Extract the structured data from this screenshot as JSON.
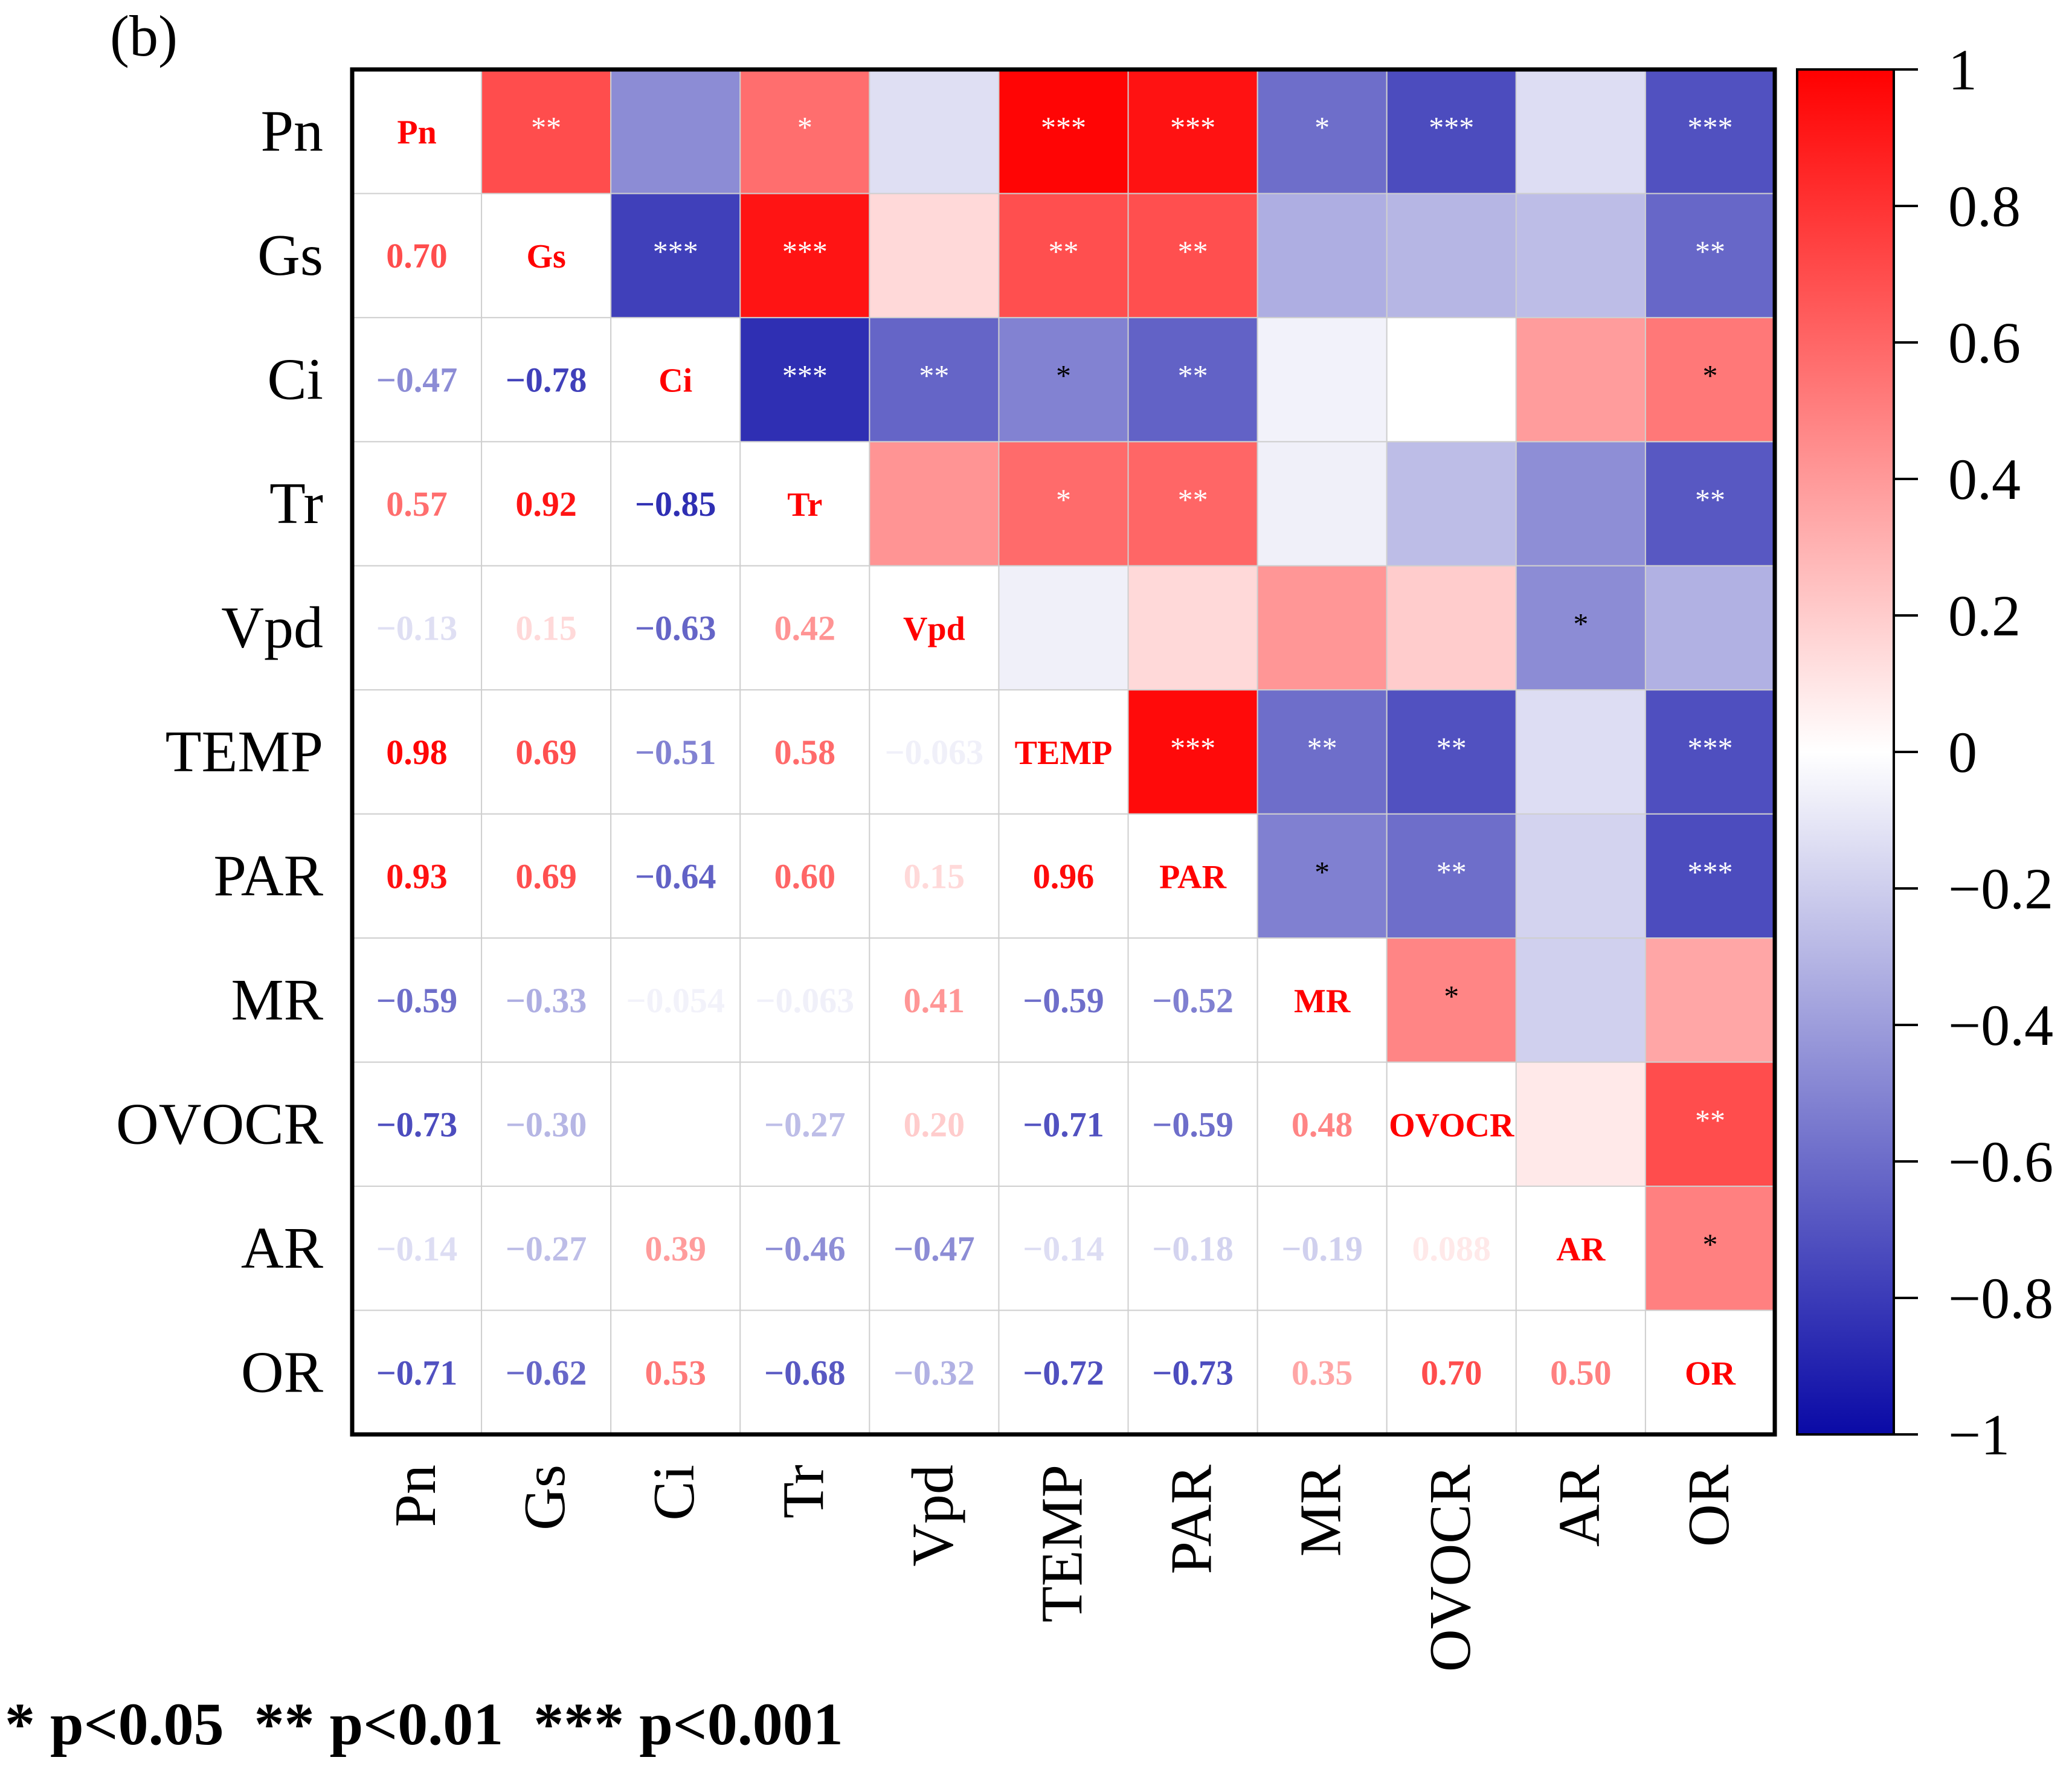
{
  "chart_data": {
    "type": "heatmap",
    "panel_label": "(b)",
    "variables": [
      "Pn",
      "Gs",
      "Ci",
      "Tr",
      "Vpd",
      "TEMP",
      "PAR",
      "MR",
      "OVOCR",
      "AR",
      "OR"
    ],
    "lower_triangle_labels": [
      [
        null,
        null,
        null,
        null,
        null,
        null,
        null,
        null,
        null,
        null,
        null
      ],
      [
        "0.70",
        null,
        null,
        null,
        null,
        null,
        null,
        null,
        null,
        null,
        null
      ],
      [
        "−0.47",
        "−0.78",
        null,
        null,
        null,
        null,
        null,
        null,
        null,
        null,
        null
      ],
      [
        "0.57",
        "0.92",
        "−0.85",
        null,
        null,
        null,
        null,
        null,
        null,
        null,
        null
      ],
      [
        "−0.13",
        "0.15",
        "−0.63",
        "0.42",
        null,
        null,
        null,
        null,
        null,
        null,
        null
      ],
      [
        "0.98",
        "0.69",
        "−0.51",
        "0.58",
        "−0.063",
        null,
        null,
        null,
        null,
        null,
        null
      ],
      [
        "0.93",
        "0.69",
        "−0.64",
        "0.60",
        "0.15",
        "0.96",
        null,
        null,
        null,
        null,
        null
      ],
      [
        "−0.59",
        "−0.33",
        "−0.054",
        "−0.063",
        "0.41",
        "−0.59",
        "−0.52",
        null,
        null,
        null,
        null
      ],
      [
        "−0.73",
        "−0.30",
        "",
        "−0.27",
        "0.20",
        "−0.71",
        "−0.59",
        "0.48",
        null,
        null,
        null
      ],
      [
        "−0.14",
        "−0.27",
        "0.39",
        "−0.46",
        "−0.47",
        "−0.14",
        "−0.18",
        "−0.19",
        "0.088",
        null,
        null
      ],
      [
        "−0.71",
        "−0.62",
        "0.53",
        "−0.68",
        "−0.32",
        "−0.72",
        "−0.73",
        "0.35",
        "0.70",
        "0.50",
        null
      ]
    ],
    "lower_triangle_values": [
      [
        null,
        null,
        null,
        null,
        null,
        null,
        null,
        null,
        null,
        null,
        null
      ],
      [
        0.7,
        null,
        null,
        null,
        null,
        null,
        null,
        null,
        null,
        null,
        null
      ],
      [
        -0.47,
        -0.78,
        null,
        null,
        null,
        null,
        null,
        null,
        null,
        null,
        null
      ],
      [
        0.57,
        0.92,
        -0.85,
        null,
        null,
        null,
        null,
        null,
        null,
        null,
        null
      ],
      [
        -0.13,
        0.15,
        -0.63,
        0.42,
        null,
        null,
        null,
        null,
        null,
        null,
        null
      ],
      [
        0.98,
        0.69,
        -0.51,
        0.58,
        -0.063,
        null,
        null,
        null,
        null,
        null,
        null
      ],
      [
        0.93,
        0.69,
        -0.64,
        0.6,
        0.15,
        0.96,
        null,
        null,
        null,
        null,
        null
      ],
      [
        -0.59,
        -0.33,
        -0.054,
        -0.063,
        0.41,
        -0.59,
        -0.52,
        null,
        null,
        null,
        null
      ],
      [
        -0.73,
        -0.3,
        0.0,
        -0.27,
        0.2,
        -0.71,
        -0.59,
        0.48,
        null,
        null,
        null
      ],
      [
        -0.14,
        -0.27,
        0.39,
        -0.46,
        -0.47,
        -0.14,
        -0.18,
        -0.19,
        0.088,
        null,
        null
      ],
      [
        -0.71,
        -0.62,
        0.53,
        -0.68,
        -0.32,
        -0.72,
        -0.73,
        0.35,
        0.7,
        0.5,
        null
      ]
    ],
    "significance_upper": [
      [
        null,
        "**",
        "",
        "*",
        "",
        "***",
        "***",
        "*",
        "***",
        "",
        "***"
      ],
      [
        null,
        null,
        "***",
        "***",
        "",
        "**",
        "**",
        "",
        "",
        "",
        "**"
      ],
      [
        null,
        null,
        null,
        "***",
        "**",
        "*",
        "**",
        "",
        "",
        "",
        "*"
      ],
      [
        null,
        null,
        null,
        null,
        "",
        "*",
        "**",
        "",
        "",
        "",
        "**"
      ],
      [
        null,
        null,
        null,
        null,
        null,
        "",
        "",
        "",
        "",
        "*",
        ""
      ],
      [
        null,
        null,
        null,
        null,
        null,
        null,
        "***",
        "**",
        "**",
        "",
        "***"
      ],
      [
        null,
        null,
        null,
        null,
        null,
        null,
        null,
        "*",
        "**",
        "",
        "***"
      ],
      [
        null,
        null,
        null,
        null,
        null,
        null,
        null,
        null,
        "*",
        "",
        ""
      ],
      [
        null,
        null,
        null,
        null,
        null,
        null,
        null,
        null,
        null,
        "",
        "**"
      ],
      [
        null,
        null,
        null,
        null,
        null,
        null,
        null,
        null,
        null,
        null,
        "*"
      ],
      [
        null,
        null,
        null,
        null,
        null,
        null,
        null,
        null,
        null,
        null,
        null
      ]
    ],
    "colorbar": {
      "range": [
        -1,
        1
      ],
      "low_color": "#0a0aa6",
      "mid_color": "#ffffff",
      "high_color": "#ff0000",
      "tick_values": [
        1,
        0.8,
        0.6,
        0.4,
        0.2,
        0,
        -0.2,
        -0.4,
        -0.6,
        -0.8,
        -1
      ],
      "tick_labels": [
        "1",
        "0.8",
        "0.6",
        "0.4",
        "0.2",
        "0",
        "−0.2",
        "−0.4",
        "−0.6",
        "−0.8",
        "−1"
      ]
    },
    "diagonal_color": "#ff0000",
    "legend_text": "* p<0.05  ** p<0.01  *** p<0.001"
  }
}
